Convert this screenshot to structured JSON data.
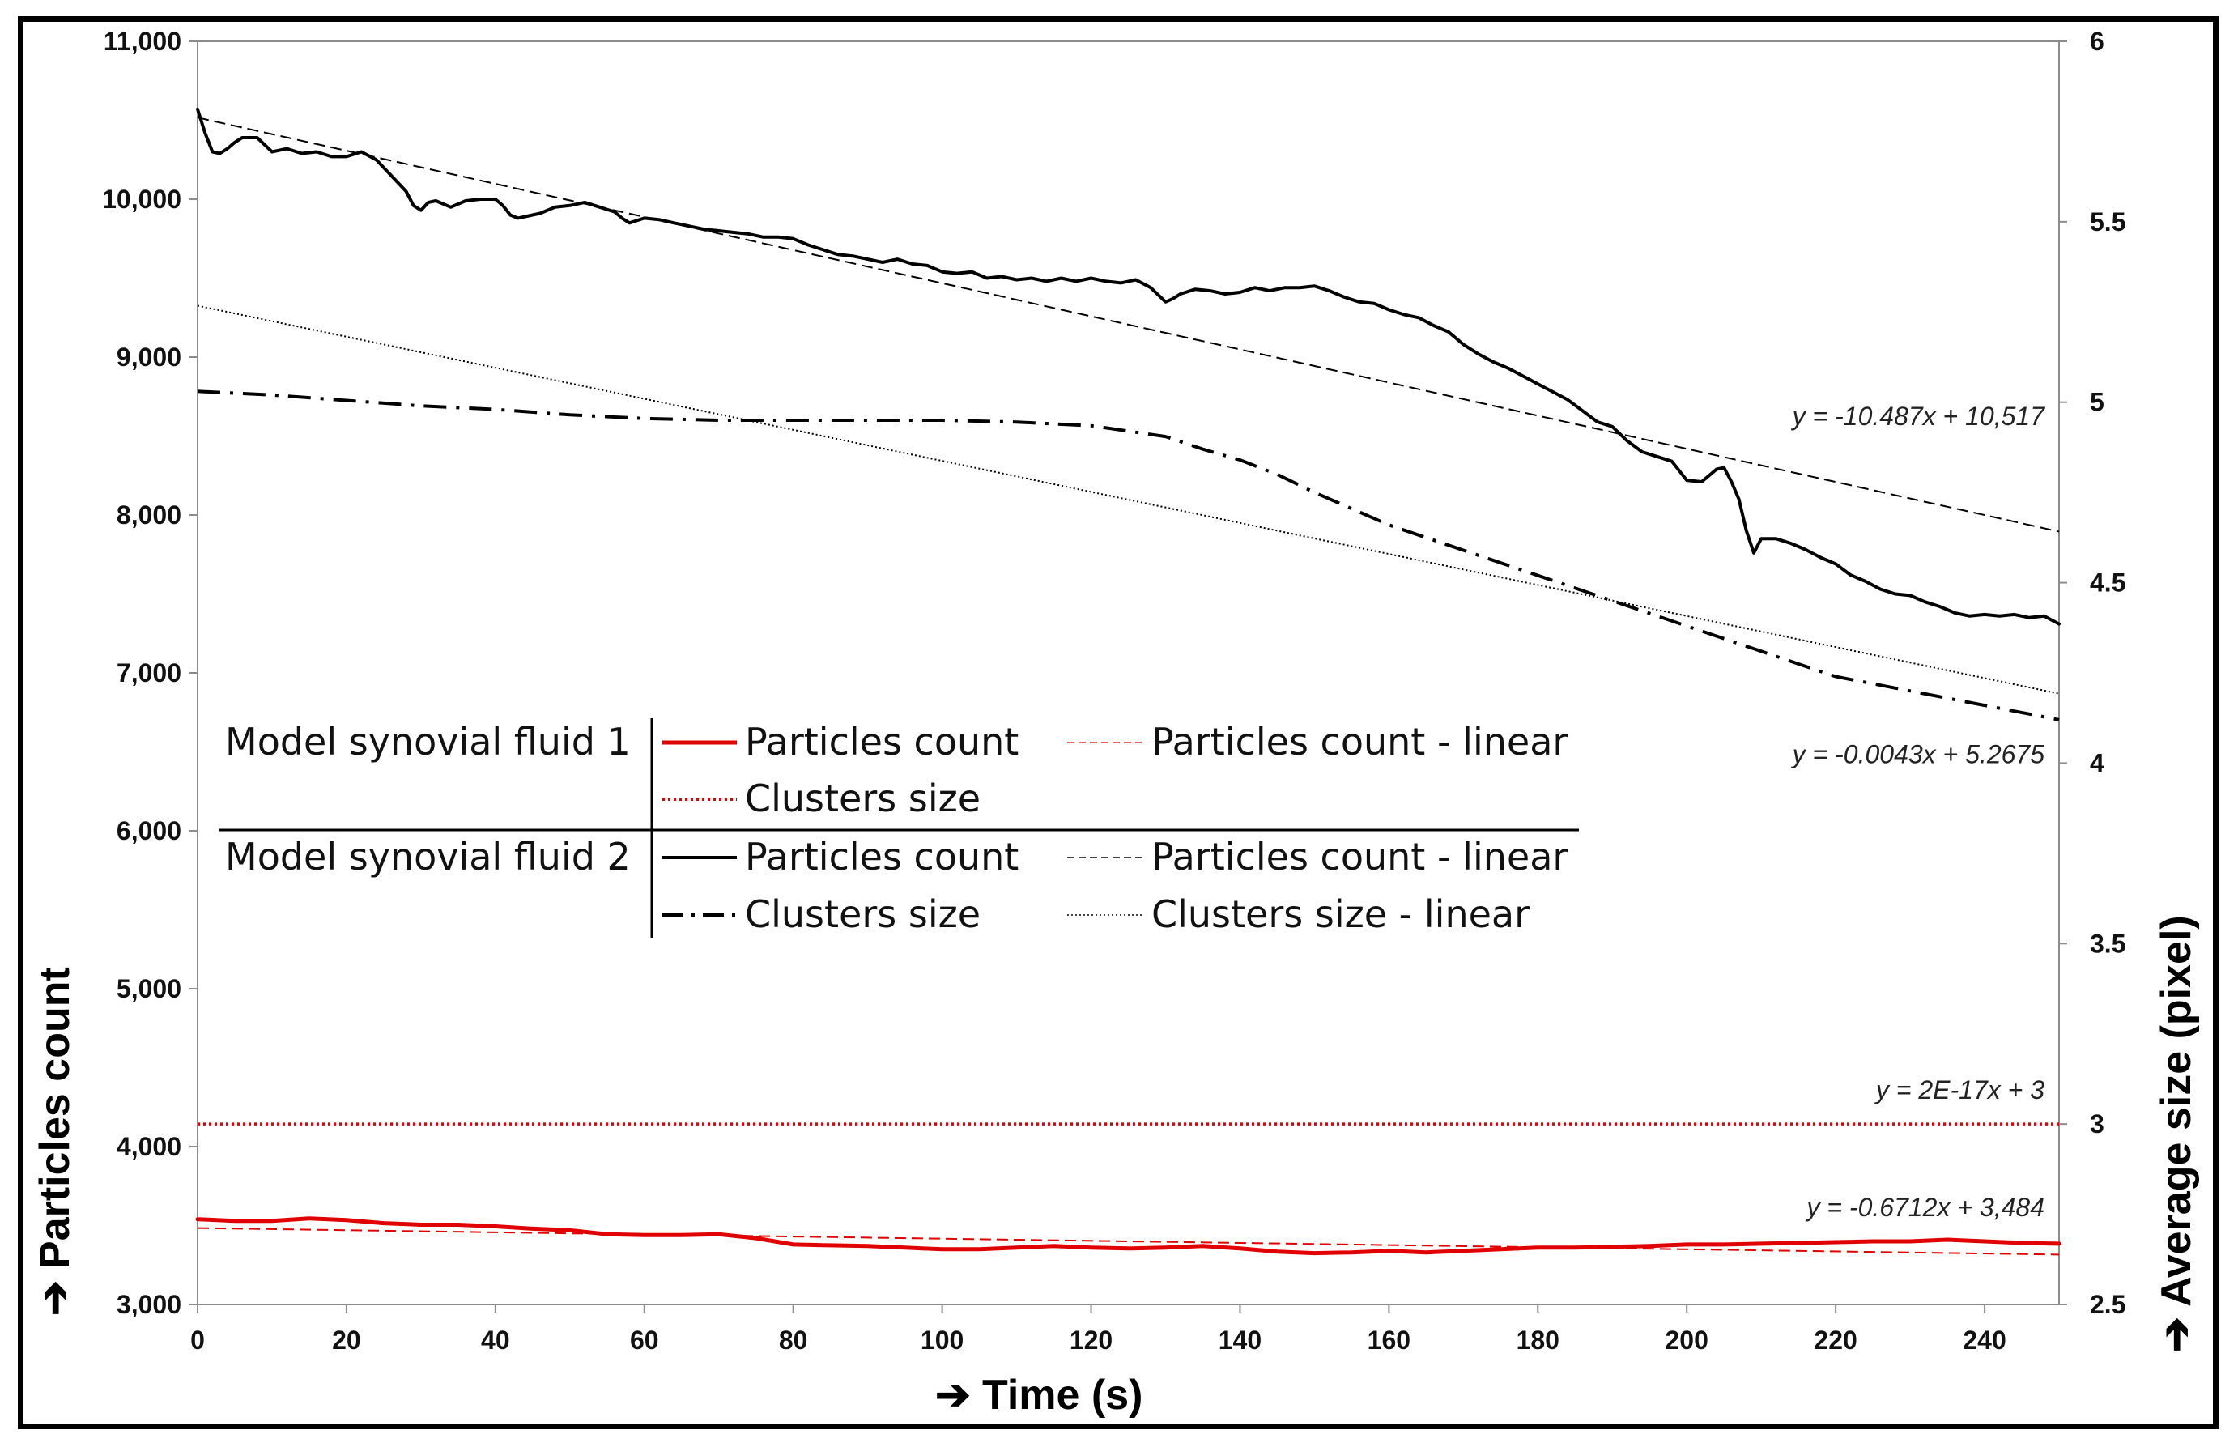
{
  "chart_data": {
    "type": "line",
    "xlabel": "Time (s)",
    "ylabel": "Particles count",
    "y2label": "Average size (pixel)",
    "xlim": [
      0,
      250
    ],
    "ylim": [
      3000,
      11000
    ],
    "y2lim": [
      2.5,
      6
    ],
    "x_ticks": [
      "0",
      "20",
      "40",
      "60",
      "80",
      "100",
      "120",
      "140",
      "160",
      "180",
      "200",
      "220",
      "240"
    ],
    "y_ticks": [
      "3,000",
      "4,000",
      "5,000",
      "6,000",
      "7,000",
      "8,000",
      "9,000",
      "10,000",
      "11,000"
    ],
    "y2_ticks": [
      "2.5",
      "3",
      "3.5",
      "4",
      "4.5",
      "5",
      "5.5",
      "6"
    ],
    "grid": false,
    "legend": {
      "placement": "center-left",
      "groups": [
        {
          "name": "Model synovial fluid 1",
          "entries": [
            {
              "label": "Particles count",
              "style": "solid-red"
            },
            {
              "label": "Particles count - linear",
              "style": "dashed-red"
            },
            {
              "label": "Clusters size",
              "style": "dotted-red"
            }
          ]
        },
        {
          "name": "Model synovial fluid 2",
          "entries": [
            {
              "label": "Particles count",
              "style": "solid-black"
            },
            {
              "label": "Particles count - linear",
              "style": "dashed-black"
            },
            {
              "label": "Clusters size",
              "style": "dashdot-black"
            },
            {
              "label": "Clusters size - linear",
              "style": "dotted-black"
            }
          ]
        }
      ]
    },
    "annotations": [
      {
        "text": "y = -10.487x + 10,517",
        "x": 250,
        "y": 8570,
        "axis": "left"
      },
      {
        "text": "y = -0.0043x + 5.2675",
        "x": 250,
        "y": 4.0,
        "axis": "right"
      },
      {
        "text": "y = 2E-17x + 3",
        "x": 250,
        "y": 3.07,
        "axis": "right"
      },
      {
        "text": "y = -0.6712x + 3,484",
        "x": 250,
        "y": 3560,
        "axis": "left"
      }
    ],
    "series": [
      {
        "name": "Model synovial fluid 2 - Particles count",
        "axis": "left",
        "color": "#000000",
        "style": "solid",
        "x": [
          0,
          1,
          2,
          3,
          4,
          5,
          6,
          8,
          10,
          12,
          14,
          16,
          18,
          20,
          22,
          24,
          25,
          26,
          27,
          28,
          29,
          30,
          31,
          32,
          34,
          36,
          38,
          40,
          41,
          42,
          43,
          44,
          46,
          48,
          50,
          52,
          54,
          56,
          57,
          58,
          60,
          62,
          64,
          66,
          68,
          70,
          72,
          74,
          76,
          78,
          80,
          82,
          84,
          86,
          88,
          90,
          92,
          94,
          96,
          98,
          100,
          102,
          104,
          106,
          108,
          110,
          112,
          114,
          116,
          118,
          120,
          122,
          124,
          126,
          128,
          130,
          131,
          132,
          134,
          136,
          138,
          140,
          142,
          144,
          146,
          148,
          150,
          152,
          154,
          156,
          158,
          160,
          162,
          164,
          166,
          168,
          170,
          172,
          174,
          176,
          178,
          180,
          182,
          184,
          186,
          188,
          190,
          192,
          194,
          196,
          198,
          200,
          202,
          204,
          205,
          206,
          207,
          208,
          209,
          210,
          212,
          214,
          216,
          218,
          220,
          222,
          224,
          226,
          228,
          230,
          232,
          234,
          236,
          238,
          240,
          242,
          244,
          246,
          248,
          250
        ],
        "y": [
          10570,
          10420,
          10300,
          10290,
          10320,
          10360,
          10390,
          10390,
          10300,
          10320,
          10290,
          10300,
          10270,
          10270,
          10300,
          10250,
          10200,
          10150,
          10100,
          10050,
          9960,
          9930,
          9980,
          9990,
          9950,
          9990,
          10000,
          10000,
          9960,
          9900,
          9880,
          9890,
          9910,
          9950,
          9960,
          9980,
          9950,
          9920,
          9880,
          9850,
          9880,
          9870,
          9850,
          9830,
          9810,
          9800,
          9790,
          9780,
          9760,
          9760,
          9750,
          9710,
          9680,
          9650,
          9640,
          9620,
          9600,
          9620,
          9590,
          9580,
          9540,
          9530,
          9540,
          9500,
          9510,
          9490,
          9500,
          9480,
          9500,
          9480,
          9500,
          9480,
          9470,
          9490,
          9440,
          9350,
          9370,
          9400,
          9430,
          9420,
          9400,
          9410,
          9440,
          9420,
          9440,
          9440,
          9450,
          9420,
          9380,
          9350,
          9340,
          9300,
          9270,
          9250,
          9200,
          9160,
          9080,
          9020,
          8970,
          8930,
          8880,
          8830,
          8780,
          8730,
          8660,
          8590,
          8560,
          8470,
          8400,
          8370,
          8340,
          8220,
          8210,
          8290,
          8300,
          8210,
          8100,
          7900,
          7760,
          7850,
          7850,
          7820,
          7780,
          7730,
          7690,
          7620,
          7580,
          7530,
          7500,
          7490,
          7450,
          7420,
          7380,
          7360,
          7370,
          7360,
          7370,
          7350,
          7360,
          7310
        ]
      },
      {
        "name": "Model synovial fluid 2 - Particles count - linear",
        "axis": "left",
        "color": "#000000",
        "style": "dashed",
        "x": [
          0,
          250
        ],
        "y": [
          10517,
          7895
        ]
      },
      {
        "name": "Model synovial fluid 2 - Clusters size",
        "axis": "right",
        "color": "#000000",
        "style": "dashdot",
        "x": [
          0,
          10,
          20,
          30,
          40,
          50,
          60,
          70,
          80,
          90,
          100,
          110,
          115,
          120,
          125,
          130,
          135,
          140,
          145,
          150,
          160,
          170,
          180,
          190,
          200,
          210,
          220,
          230,
          240,
          250
        ],
        "y": [
          5.03,
          5.02,
          5.005,
          4.99,
          4.98,
          4.965,
          4.955,
          4.95,
          4.95,
          4.95,
          4.95,
          4.945,
          4.94,
          4.935,
          4.92,
          4.905,
          4.87,
          4.84,
          4.8,
          4.75,
          4.66,
          4.59,
          4.52,
          4.45,
          4.38,
          4.31,
          4.24,
          4.2,
          4.16,
          4.12
        ]
      },
      {
        "name": "Model synovial fluid 2 - Clusters size - linear",
        "axis": "right",
        "color": "#000000",
        "style": "dotted",
        "x": [
          0,
          250
        ],
        "y": [
          5.2675,
          4.1925
        ]
      },
      {
        "name": "Model synovial fluid 1 - Particles count",
        "axis": "left",
        "color": "#e00000",
        "style": "solid",
        "x": [
          0,
          5,
          10,
          15,
          20,
          25,
          30,
          35,
          40,
          45,
          50,
          55,
          60,
          65,
          70,
          75,
          80,
          85,
          90,
          95,
          100,
          105,
          110,
          115,
          120,
          125,
          130,
          135,
          140,
          145,
          150,
          155,
          160,
          165,
          170,
          175,
          180,
          185,
          190,
          195,
          200,
          205,
          210,
          215,
          220,
          225,
          230,
          235,
          240,
          245,
          250
        ],
        "y": [
          3540,
          3530,
          3530,
          3545,
          3535,
          3515,
          3505,
          3505,
          3495,
          3480,
          3470,
          3445,
          3440,
          3440,
          3445,
          3420,
          3380,
          3375,
          3370,
          3360,
          3350,
          3350,
          3360,
          3370,
          3360,
          3355,
          3360,
          3370,
          3355,
          3335,
          3325,
          3330,
          3340,
          3330,
          3340,
          3350,
          3360,
          3360,
          3365,
          3370,
          3380,
          3380,
          3385,
          3390,
          3395,
          3400,
          3400,
          3410,
          3400,
          3390,
          3385
        ]
      },
      {
        "name": "Model synovial fluid 1 - Particles count - linear",
        "axis": "left",
        "color": "#e00000",
        "style": "dashed",
        "x": [
          0,
          250
        ],
        "y": [
          3484,
          3316
        ]
      },
      {
        "name": "Model synovial fluid 1 - Clusters size",
        "axis": "right",
        "color": "#e00000",
        "style": "dotted",
        "x": [
          0,
          250
        ],
        "y": [
          3,
          3
        ]
      }
    ]
  }
}
